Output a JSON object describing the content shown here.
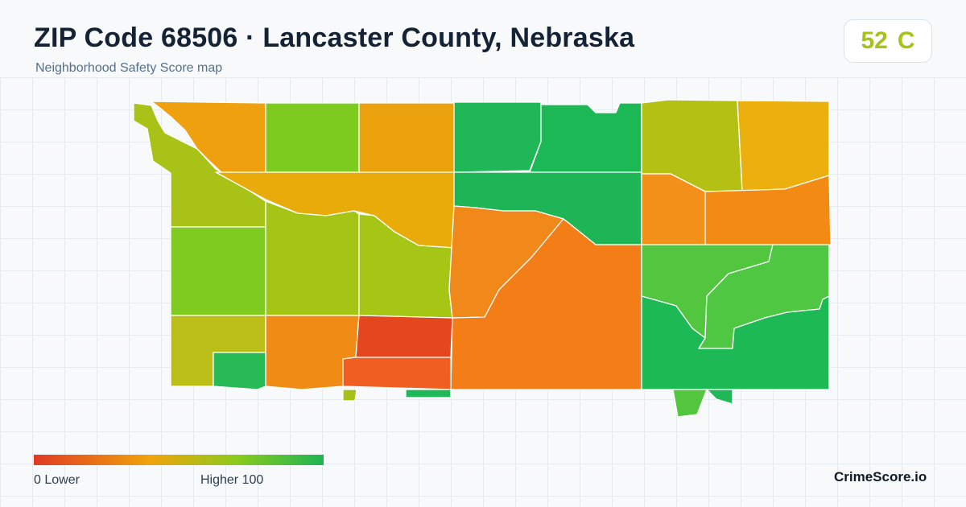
{
  "header": {
    "title": "ZIP Code 68506 · Lancaster County, Nebraska",
    "subtitle": "Neighborhood Safety Score map"
  },
  "score": {
    "value": "52",
    "grade": "C",
    "color": "#a6c218"
  },
  "legend": {
    "min_label": "0  Lower",
    "max_label": "Higher  100",
    "colors": [
      "#e03a24",
      "#f0a30c",
      "#8cca1c",
      "#1eb454"
    ]
  },
  "brand": "CrimeScore.io",
  "map": {
    "regions": [
      {
        "name": "nw-corner",
        "color": "#a8c218"
      },
      {
        "name": "north-orange-1",
        "color": "#eea00f"
      },
      {
        "name": "north-green-1",
        "color": "#7ccb1e"
      },
      {
        "name": "north-orange-2",
        "color": "#eca20c"
      },
      {
        "name": "north-dark-green-1",
        "color": "#1fb758"
      },
      {
        "name": "north-dark-green-2",
        "color": "#1db856"
      },
      {
        "name": "ne-olive",
        "color": "#b4c014"
      },
      {
        "name": "ne-gold",
        "color": "#ebb00d"
      },
      {
        "name": "diagonal-orange-band",
        "color": "#e8ab0a"
      },
      {
        "name": "center-dark-green",
        "color": "#1db556"
      },
      {
        "name": "east-orange-a",
        "color": "#f2901a"
      },
      {
        "name": "east-orange-b",
        "color": "#f28a14"
      },
      {
        "name": "west-light-green",
        "color": "#7fcb20"
      },
      {
        "name": "center-olive-1",
        "color": "#a4c516"
      },
      {
        "name": "center-olive-2",
        "color": "#a6c616"
      },
      {
        "name": "center-orange-1",
        "color": "#f0891a"
      },
      {
        "name": "big-orange",
        "color": "#f37d16"
      },
      {
        "name": "se-green-1",
        "color": "#52c63e"
      },
      {
        "name": "se-green-2",
        "color": "#4fc743"
      },
      {
        "name": "se-dark-green",
        "color": "#1db955"
      },
      {
        "name": "sw-olive",
        "color": "#bbbe16"
      },
      {
        "name": "south-orange",
        "color": "#f08c16"
      },
      {
        "name": "red-block",
        "color": "#e4461e"
      },
      {
        "name": "orange-red-strip",
        "color": "#f05e22"
      },
      {
        "name": "sw-green-strip",
        "color": "#27ba55"
      },
      {
        "name": "south-notch-green",
        "color": "#52c63e"
      },
      {
        "name": "south-notch-dark",
        "color": "#1fb758"
      },
      {
        "name": "tiny-olive",
        "color": "#a6c018"
      },
      {
        "name": "tiny-green",
        "color": "#1fb758"
      }
    ]
  }
}
